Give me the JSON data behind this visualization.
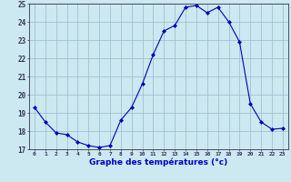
{
  "x": [
    0,
    1,
    2,
    3,
    4,
    5,
    6,
    7,
    8,
    9,
    10,
    11,
    12,
    13,
    14,
    15,
    16,
    17,
    18,
    19,
    20,
    21,
    22,
    23
  ],
  "y": [
    19.3,
    18.5,
    17.9,
    17.8,
    17.4,
    17.2,
    17.1,
    17.2,
    18.6,
    19.3,
    20.6,
    22.2,
    23.5,
    23.8,
    24.8,
    24.9,
    24.5,
    24.8,
    24.0,
    22.9,
    19.5,
    18.5,
    18.1,
    18.15
  ],
  "xlabel": "Graphe des températures (°c)",
  "ylim": [
    17,
    25
  ],
  "yticks": [
    17,
    18,
    19,
    20,
    21,
    22,
    23,
    24,
    25
  ],
  "xticks": [
    0,
    1,
    2,
    3,
    4,
    5,
    6,
    7,
    8,
    9,
    10,
    11,
    12,
    13,
    14,
    15,
    16,
    17,
    18,
    19,
    20,
    21,
    22,
    23
  ],
  "line_color": "#0000bb",
  "marker_color": "#0000bb",
  "bg_color": "#cce8f0",
  "grid_color": "#99bbcc",
  "axis_color": "#333355",
  "label_color": "#0000cc",
  "xlabel_color": "#0000cc"
}
